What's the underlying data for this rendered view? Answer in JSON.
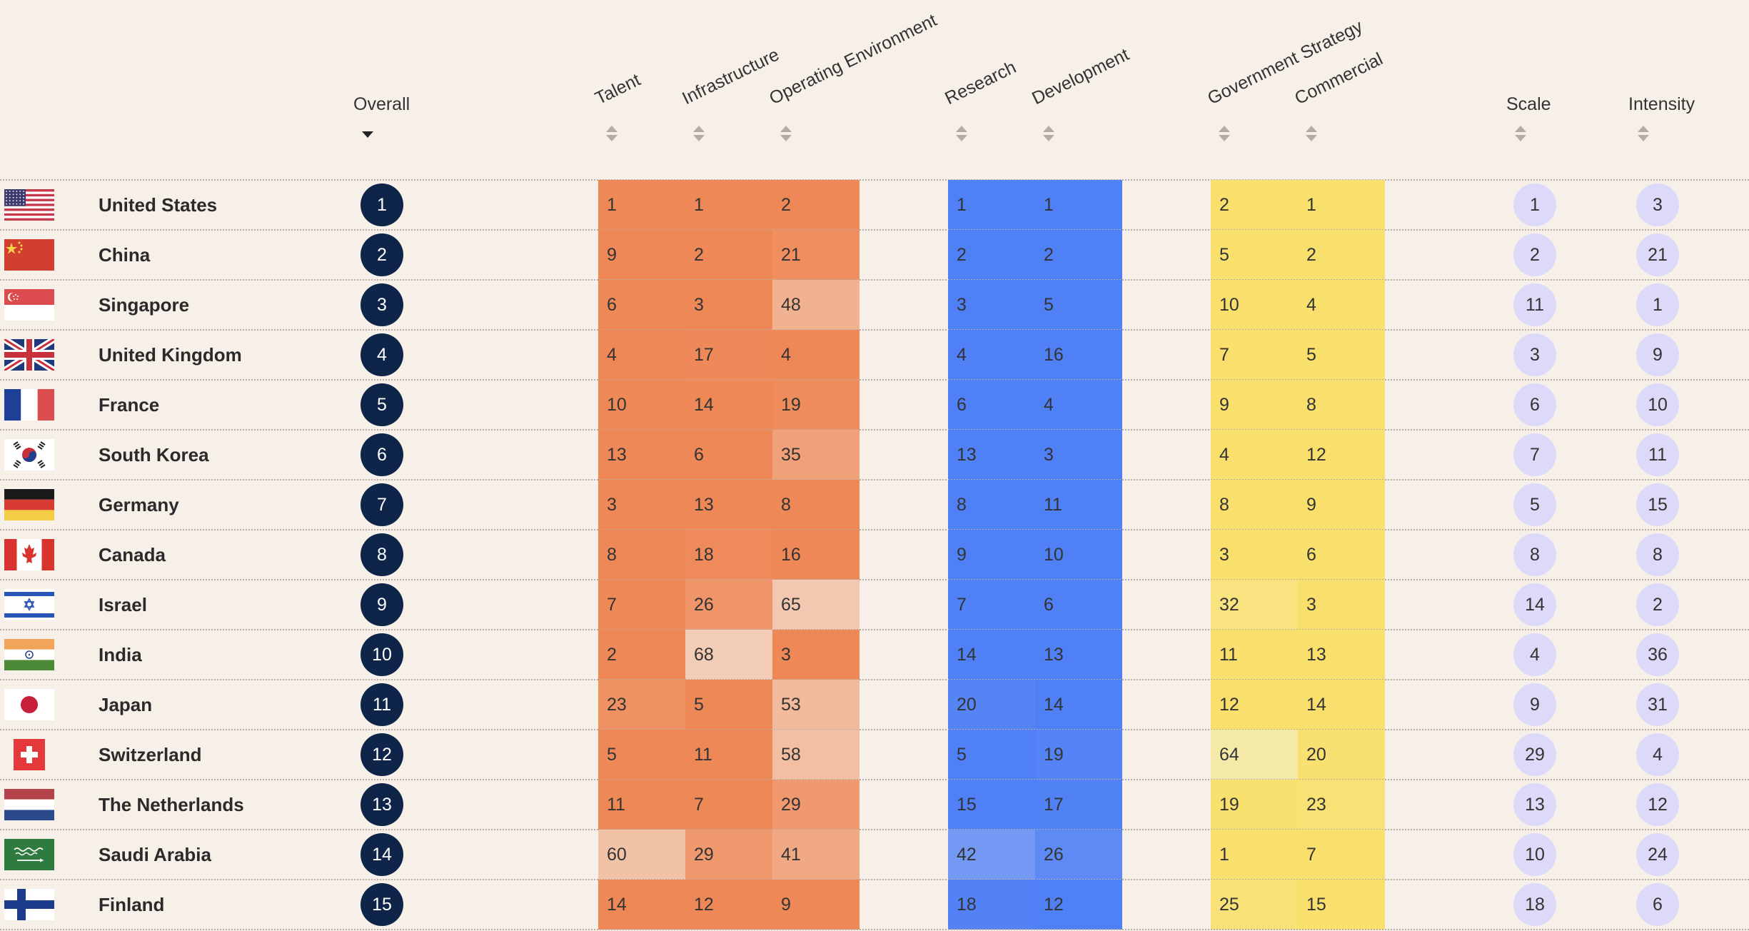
{
  "headers": {
    "overall": "Overall",
    "talent": "Talent",
    "infrastructure": "Infrastructure",
    "operating_environment": "Operating Environment",
    "research": "Research",
    "development": "Development",
    "government_strategy": "Government Strategy",
    "commercial": "Commercial",
    "scale": "Scale",
    "intensity": "Intensity"
  },
  "colors": {
    "background": "#f7f0e8",
    "overall_circle": "#0e2549",
    "scale_circle": "#dcdaf8",
    "orange_strong": "#ef8857",
    "blue_strong": "#4f80f5",
    "yellow_strong": "#f9e06c"
  },
  "rows": [
    {
      "country": "United States",
      "flag": "us-flag-icon",
      "overall": "1",
      "talent": "1",
      "infrastructure": "1",
      "operating_environment": "2",
      "research": "1",
      "development": "1",
      "government_strategy": "2",
      "commercial": "1",
      "scale": "1",
      "intensity": "3"
    },
    {
      "country": "China",
      "flag": "china-flag-icon",
      "overall": "2",
      "talent": "9",
      "infrastructure": "2",
      "operating_environment": "21",
      "research": "2",
      "development": "2",
      "government_strategy": "5",
      "commercial": "2",
      "scale": "2",
      "intensity": "21"
    },
    {
      "country": "Singapore",
      "flag": "singapore-flag-icon",
      "overall": "3",
      "talent": "6",
      "infrastructure": "3",
      "operating_environment": "48",
      "research": "3",
      "development": "5",
      "government_strategy": "10",
      "commercial": "4",
      "scale": "11",
      "intensity": "1"
    },
    {
      "country": "United Kingdom",
      "flag": "uk-flag-icon",
      "overall": "4",
      "talent": "4",
      "infrastructure": "17",
      "operating_environment": "4",
      "research": "4",
      "development": "16",
      "government_strategy": "7",
      "commercial": "5",
      "scale": "3",
      "intensity": "9"
    },
    {
      "country": "France",
      "flag": "france-flag-icon",
      "overall": "5",
      "talent": "10",
      "infrastructure": "14",
      "operating_environment": "19",
      "research": "6",
      "development": "4",
      "government_strategy": "9",
      "commercial": "8",
      "scale": "6",
      "intensity": "10"
    },
    {
      "country": "South Korea",
      "flag": "south-korea-flag-icon",
      "overall": "6",
      "talent": "13",
      "infrastructure": "6",
      "operating_environment": "35",
      "research": "13",
      "development": "3",
      "government_strategy": "4",
      "commercial": "12",
      "scale": "7",
      "intensity": "11"
    },
    {
      "country": "Germany",
      "flag": "germany-flag-icon",
      "overall": "7",
      "talent": "3",
      "infrastructure": "13",
      "operating_environment": "8",
      "research": "8",
      "development": "11",
      "government_strategy": "8",
      "commercial": "9",
      "scale": "5",
      "intensity": "15"
    },
    {
      "country": "Canada",
      "flag": "canada-flag-icon",
      "overall": "8",
      "talent": "8",
      "infrastructure": "18",
      "operating_environment": "16",
      "research": "9",
      "development": "10",
      "government_strategy": "3",
      "commercial": "6",
      "scale": "8",
      "intensity": "8"
    },
    {
      "country": "Israel",
      "flag": "israel-flag-icon",
      "overall": "9",
      "talent": "7",
      "infrastructure": "26",
      "operating_environment": "65",
      "research": "7",
      "development": "6",
      "government_strategy": "32",
      "commercial": "3",
      "scale": "14",
      "intensity": "2"
    },
    {
      "country": "India",
      "flag": "india-flag-icon",
      "overall": "10",
      "talent": "2",
      "infrastructure": "68",
      "operating_environment": "3",
      "research": "14",
      "development": "13",
      "government_strategy": "11",
      "commercial": "13",
      "scale": "4",
      "intensity": "36"
    },
    {
      "country": "Japan",
      "flag": "japan-flag-icon",
      "overall": "11",
      "talent": "23",
      "infrastructure": "5",
      "operating_environment": "53",
      "research": "20",
      "development": "14",
      "government_strategy": "12",
      "commercial": "14",
      "scale": "9",
      "intensity": "31"
    },
    {
      "country": "Switzerland",
      "flag": "switzerland-flag-icon",
      "overall": "12",
      "talent": "5",
      "infrastructure": "11",
      "operating_environment": "58",
      "research": "5",
      "development": "19",
      "government_strategy": "64",
      "commercial": "20",
      "scale": "29",
      "intensity": "4"
    },
    {
      "country": "The Netherlands",
      "flag": "netherlands-flag-icon",
      "overall": "13",
      "talent": "11",
      "infrastructure": "7",
      "operating_environment": "29",
      "research": "15",
      "development": "17",
      "government_strategy": "19",
      "commercial": "23",
      "scale": "13",
      "intensity": "12"
    },
    {
      "country": "Saudi Arabia",
      "flag": "saudi-arabia-flag-icon",
      "overall": "14",
      "talent": "60",
      "infrastructure": "29",
      "operating_environment": "41",
      "research": "42",
      "development": "26",
      "government_strategy": "1",
      "commercial": "7",
      "scale": "10",
      "intensity": "24"
    },
    {
      "country": "Finland",
      "flag": "finland-flag-icon",
      "overall": "15",
      "talent": "14",
      "infrastructure": "12",
      "operating_environment": "9",
      "research": "18",
      "development": "12",
      "government_strategy": "25",
      "commercial": "15",
      "scale": "18",
      "intensity": "6"
    }
  ]
}
